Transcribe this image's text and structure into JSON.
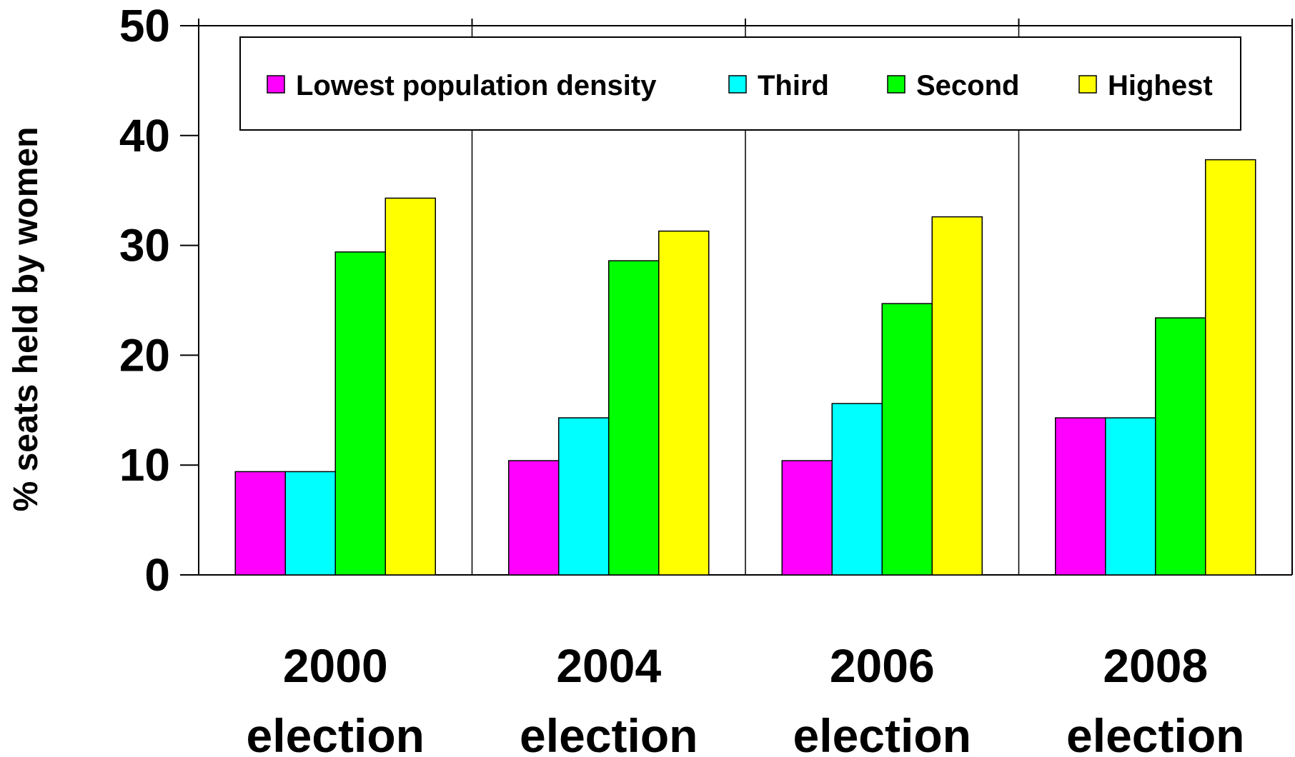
{
  "chart_data": {
    "type": "bar",
    "categories": [
      [
        "2000",
        "election"
      ],
      [
        "2004",
        "election"
      ],
      [
        "2006",
        "election"
      ],
      [
        "2008",
        "election"
      ]
    ],
    "series": [
      {
        "name": "Lowest population density",
        "color": "#ff00ff",
        "values": [
          9.4,
          10.4,
          10.4,
          14.3
        ]
      },
      {
        "name": "Third",
        "color": "#00ffff",
        "values": [
          9.4,
          14.3,
          15.6,
          14.3
        ]
      },
      {
        "name": "Second",
        "color": "#00ff00",
        "values": [
          29.4,
          28.6,
          24.7,
          23.4
        ]
      },
      {
        "name": "Highest",
        "color": "#ffff00",
        "values": [
          34.3,
          31.3,
          32.6,
          37.8
        ]
      }
    ],
    "ylabel": "% seats held by women",
    "xlabel": "",
    "ylim": [
      0,
      50
    ],
    "yticks": [
      0,
      10,
      20,
      30,
      40,
      50
    ],
    "legend_position": "top",
    "grid": false,
    "group_separators": true
  }
}
